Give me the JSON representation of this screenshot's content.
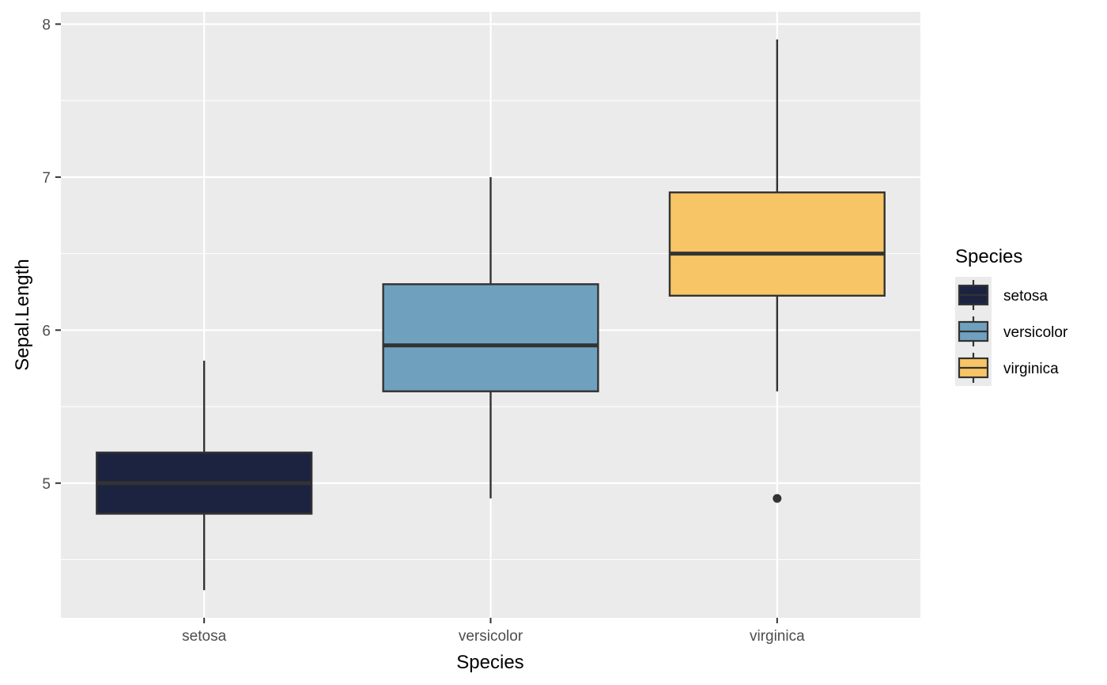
{
  "chart_data": {
    "type": "boxplot",
    "xlabel": "Species",
    "ylabel": "Sepal.Length",
    "categories": [
      "setosa",
      "versicolor",
      "virginica"
    ],
    "ylim": [
      4.12,
      8.08
    ],
    "yticks": [
      5,
      6,
      7,
      8
    ],
    "ytick_labels": [
      "5",
      "6",
      "7",
      "8"
    ],
    "grid": true,
    "legend": {
      "title": "Species",
      "placement": "right",
      "entries": [
        "setosa",
        "versicolor",
        "virginica"
      ]
    },
    "boxes": [
      {
        "category": "setosa",
        "min": 4.3,
        "q1": 4.8,
        "median": 5.0,
        "q3": 5.2,
        "max": 5.8,
        "outliers": [],
        "color": "#1B2341"
      },
      {
        "category": "versicolor",
        "min": 4.9,
        "q1": 5.6,
        "median": 5.9,
        "q3": 6.3,
        "max": 7.0,
        "outliers": [],
        "color": "#6FA1BF"
      },
      {
        "category": "virginica",
        "min": 5.6,
        "q1": 6.225,
        "median": 6.5,
        "q3": 6.9,
        "max": 7.9,
        "outliers": [
          4.9
        ],
        "color": "#F8C566"
      }
    ],
    "colors": {
      "panel_background": "#EBEBEB",
      "grid": "#FFFFFF",
      "box_outline": "#333333"
    }
  }
}
